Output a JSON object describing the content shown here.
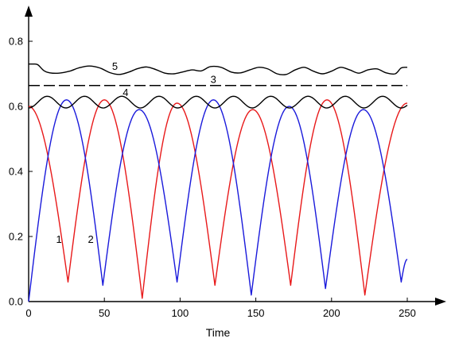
{
  "chart_data": {
    "type": "line",
    "title": "",
    "xlabel": "Time",
    "ylabel": "",
    "xlim": [
      0,
      250
    ],
    "ylim": [
      0,
      0.8
    ],
    "grid": false,
    "x_ticks": [
      {
        "value": 0,
        "label": "0"
      },
      {
        "value": 50,
        "label": "50"
      },
      {
        "value": 100,
        "label": "100"
      },
      {
        "value": 150,
        "label": "150"
      },
      {
        "value": 200,
        "label": "200"
      },
      {
        "value": 250,
        "label": "250"
      }
    ],
    "y_ticks": [
      {
        "value": 0,
        "label": "0.0"
      },
      {
        "value": 0.2,
        "label": "0.2"
      },
      {
        "value": 0.4,
        "label": "0.4"
      },
      {
        "value": 0.6,
        "label": "0.6"
      },
      {
        "value": 0.8,
        "label": "0.8"
      }
    ],
    "series": [
      {
        "name": "1",
        "color": "#e8191a",
        "label_at": [
          20,
          0.18
        ],
        "minima": [
          [
            26,
            0.06
          ],
          [
            75,
            0.01
          ],
          [
            123,
            0.05
          ],
          [
            173,
            0.05
          ],
          [
            222,
            0.02
          ]
        ],
        "maxima": [
          [
            0,
            0.6
          ],
          [
            50,
            0.62
          ],
          [
            98,
            0.61
          ],
          [
            148,
            0.59
          ],
          [
            197,
            0.62
          ],
          [
            250,
            0.61
          ]
        ]
      },
      {
        "name": "2",
        "color": "#1a1adb",
        "label_at": [
          41,
          0.18
        ],
        "minima": [
          [
            0,
            0.0
          ],
          [
            49,
            0.05
          ],
          [
            98,
            0.06
          ],
          [
            147,
            0.02
          ],
          [
            196,
            0.04
          ],
          [
            246,
            0.06
          ]
        ],
        "maxima": [
          [
            25,
            0.62
          ],
          [
            73,
            0.59
          ],
          [
            122,
            0.62
          ],
          [
            172,
            0.6
          ],
          [
            221,
            0.59
          ]
        ],
        "end": [
          250,
          0.13
        ]
      },
      {
        "name": "3",
        "color": "#000000",
        "style": "dashed",
        "label_at": [
          122,
          0.672
        ],
        "x": [
          0,
          250
        ],
        "y": [
          0.664,
          0.664
        ]
      },
      {
        "name": "4",
        "color": "#000000",
        "label_at": [
          64,
          0.632
        ],
        "base": 0.613,
        "amplitude": 0.018,
        "period": 24.6
      },
      {
        "name": "5",
        "color": "#000000",
        "label_at": [
          57,
          0.712
        ],
        "x": [
          0,
          3,
          6,
          10,
          14,
          20,
          27,
          33,
          40,
          47,
          54,
          60,
          66,
          72,
          78,
          84,
          90,
          96,
          102,
          108,
          114,
          120,
          127,
          134,
          140,
          146,
          152,
          158,
          164,
          170,
          176,
          182,
          188,
          194,
          200,
          206,
          212,
          218,
          224,
          230,
          236,
          242,
          246,
          250
        ],
        "y": [
          0.73,
          0.73,
          0.728,
          0.71,
          0.703,
          0.702,
          0.708,
          0.718,
          0.724,
          0.718,
          0.703,
          0.698,
          0.705,
          0.716,
          0.721,
          0.713,
          0.702,
          0.7,
          0.706,
          0.712,
          0.709,
          0.722,
          0.72,
          0.705,
          0.703,
          0.712,
          0.72,
          0.715,
          0.7,
          0.698,
          0.712,
          0.72,
          0.708,
          0.7,
          0.708,
          0.72,
          0.712,
          0.702,
          0.712,
          0.715,
          0.703,
          0.7,
          0.718,
          0.72
        ]
      }
    ]
  }
}
